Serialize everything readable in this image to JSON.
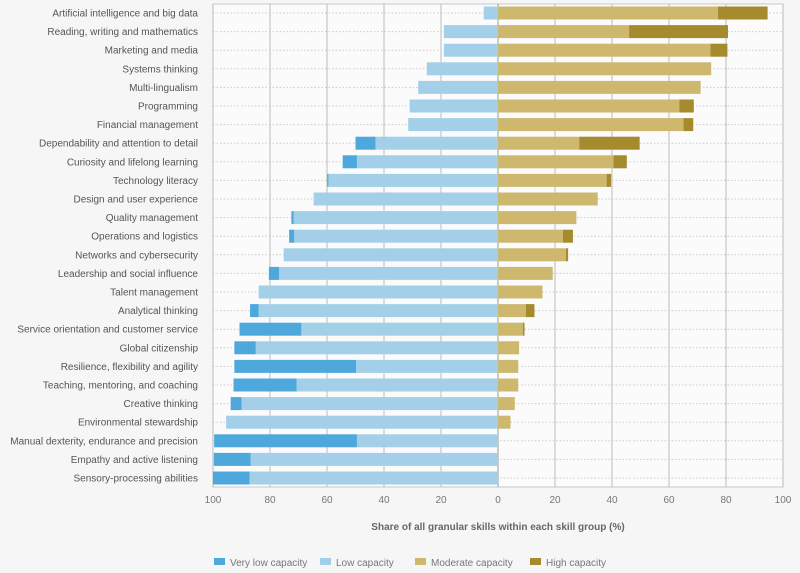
{
  "chart_data": {
    "type": "bar",
    "stacked": "diverging",
    "xlabel": "Share of all granular skills within each skill group (%)",
    "xlim": [
      -100,
      100
    ],
    "xticks": [
      "100",
      "80",
      "60",
      "40",
      "20",
      "0",
      "20",
      "40",
      "60",
      "80",
      "100"
    ],
    "grid": "vertical solid, horizontal dotted",
    "legend_position": "bottom-left",
    "categories": [
      "Artificial intelligence and big data",
      "Reading, writing and mathematics",
      "Marketing and media",
      "Systems thinking",
      "Multi-lingualism",
      "Programming",
      "Financial management",
      "Dependability and attention to detail",
      "Curiosity and lifelong learning",
      "Technology literacy",
      "Design and user experience",
      "Quality management",
      "Operations and logistics",
      "Networks and cybersecurity",
      "Leadership and social influence",
      "Talent management",
      "Analytical thinking",
      "Service orientation and customer service",
      "Global citizenship",
      "Resilience, flexibility and agility",
      "Teaching, mentoring, and coaching",
      "Creative thinking",
      "Environmental stewardship",
      "Manual dexterity, endurance and precision",
      "Empathy and active listening",
      "Sensory-processing abilities"
    ],
    "series": [
      {
        "name": "Very low capacity",
        "color": "#4ea8dc",
        "side": "left",
        "values": [
          0,
          0,
          0,
          0,
          0,
          0,
          0,
          7,
          5,
          0.4,
          0,
          0.8,
          1.8,
          0,
          3.6,
          0,
          3,
          21.7,
          7.5,
          42.7,
          22.1,
          3.8,
          0,
          50.1,
          12.9,
          12.8
        ]
      },
      {
        "name": "Low capacity",
        "color": "#a3d0e8",
        "side": "left",
        "values": [
          5,
          19,
          19,
          25,
          28,
          31,
          31.5,
          43,
          49.5,
          59.5,
          64.7,
          71.7,
          71.5,
          75.2,
          76.8,
          84,
          84,
          69,
          85,
          49.8,
          70.7,
          90,
          95.4,
          49.5,
          86.8,
          87.2
        ]
      },
      {
        "name": "Moderate capacity",
        "color": "#cdb86e",
        "side": "right",
        "values": [
          77.2,
          46,
          74.5,
          74.8,
          71.1,
          63.6,
          65.1,
          28.5,
          40.5,
          38.1,
          35,
          27.5,
          22.8,
          23.8,
          19.2,
          15.6,
          9.8,
          8.7,
          7.4,
          7.1,
          7.1,
          5.9,
          4.4,
          0,
          0,
          0
        ]
      },
      {
        "name": "High capacity",
        "color": "#a68a2e",
        "side": "right",
        "values": [
          17.4,
          34.7,
          6,
          0,
          0,
          5.1,
          3.4,
          21.2,
          4.7,
          1.6,
          0,
          0,
          3.5,
          0.8,
          0,
          0,
          3,
          0.6,
          0,
          0,
          0,
          0,
          0,
          0,
          0,
          0
        ]
      }
    ]
  }
}
